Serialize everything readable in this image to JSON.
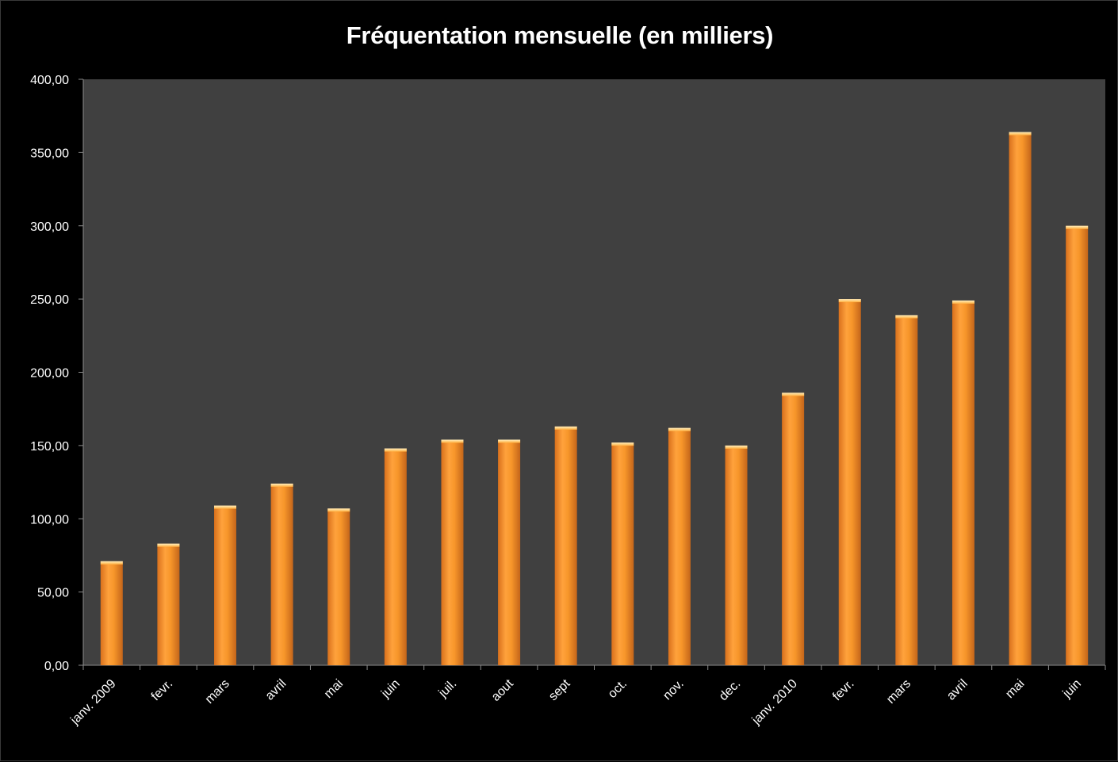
{
  "chart_data": {
    "type": "bar",
    "title": "Fréquentation mensuelle (en milliers)",
    "xlabel": "",
    "ylabel": "",
    "categories": [
      "janv. 2009",
      "fevr.",
      "mars",
      "avril",
      "mai",
      "juin",
      "juil.",
      "aout",
      "sept",
      "oct.",
      "nov.",
      "dec.",
      "janv. 2010",
      "fevr.",
      "mars",
      "avril",
      "mai",
      "juin"
    ],
    "values": [
      71,
      83,
      109,
      124,
      107,
      148,
      154,
      154,
      163,
      152,
      162,
      150,
      186,
      250,
      239,
      249,
      364,
      300
    ],
    "ylim": [
      0,
      400
    ],
    "yticks": [
      "0,00",
      "50,00",
      "100,00",
      "150,00",
      "200,00",
      "250,00",
      "300,00",
      "350,00",
      "400,00"
    ],
    "grid": false,
    "legend": "none",
    "colors": {
      "bar": "#f7962a",
      "bar_light": "#ffc070",
      "bar_dark": "#c4651a",
      "plot_background": "#404040",
      "page_background": "#000000",
      "text": "#ffffff"
    }
  }
}
